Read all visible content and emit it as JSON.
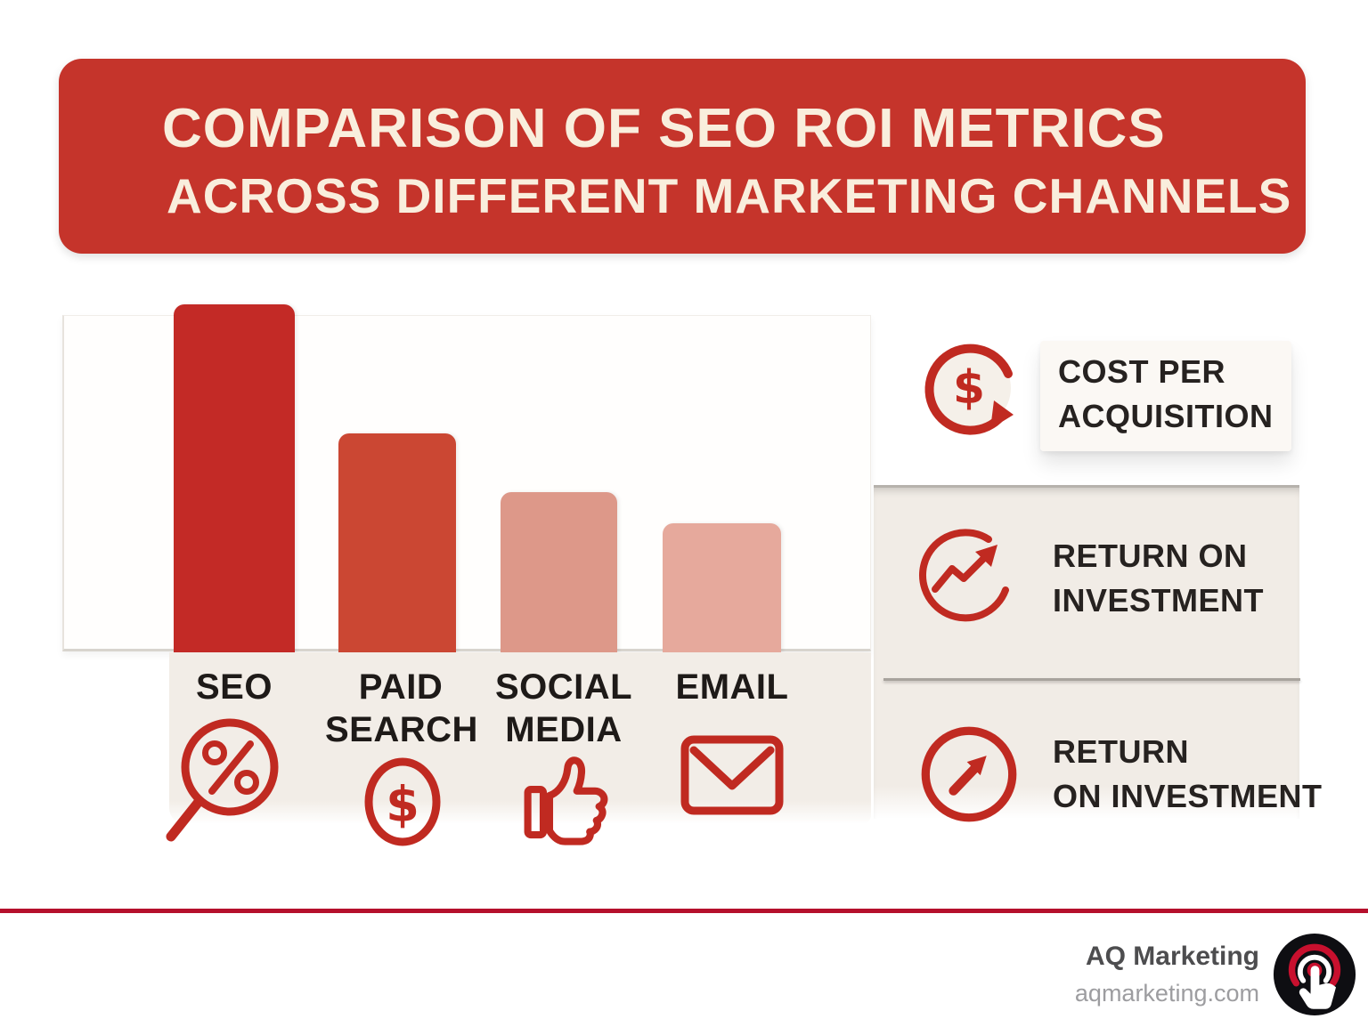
{
  "header": {
    "title_line1": "COMPARISON OF SEO ROI METRICS",
    "title_line2": "ACROSS DIFFERENT MARKETING CHANNELS"
  },
  "chart_data": {
    "type": "bar",
    "categories": [
      "SEO",
      "PAID SEARCH",
      "SOCIAL MEDIA",
      "EMAIL"
    ],
    "values": [
      100,
      63,
      46,
      37
    ],
    "ylim": [
      0,
      100
    ],
    "title": "Comparison of SEO ROI metrics across different marketing channels",
    "xlabel": "",
    "ylabel": "",
    "grid": false,
    "legend_position": "none",
    "bar_colors": [
      "#c32a26",
      "#cb4733",
      "#dd9889",
      "#e6a99c"
    ],
    "category_icons": [
      "magnifier-percent",
      "dollar-circle",
      "thumbs-up",
      "envelope"
    ]
  },
  "legend": [
    {
      "icon": "dollar-cycle-arrow",
      "label_line1": "COST PER",
      "label_line2": "ACQUISITION"
    },
    {
      "icon": "growth-chart-circle",
      "label_line1": "RETURN ON",
      "label_line2": "INVESTMENT"
    },
    {
      "icon": "arrow-up-right-circle",
      "label_line1": "RETURN",
      "label_line2": "ON INVESTMENT"
    }
  ],
  "footer": {
    "brand": "AQ Marketing",
    "website": "aqmarketing.com"
  },
  "colors": {
    "page_bg": "#ffffff",
    "banner_red": "#c5342b",
    "banner_text": "#f9eedd",
    "icon_red": "#c02a21",
    "label_dark": "#1e1a18",
    "legend_text": "#262220",
    "band_bg": "#f2ede7",
    "panel_bg": "#f1ece6",
    "divider_gray": "#a8a39d",
    "bar_base_line": "#d8d4ce",
    "footer_line_red": "#b5102c",
    "brand_text": "#4d4d4f",
    "website_text": "#9d9da0",
    "logo_black": "#0e0e12",
    "logo_red": "#c8102e"
  }
}
